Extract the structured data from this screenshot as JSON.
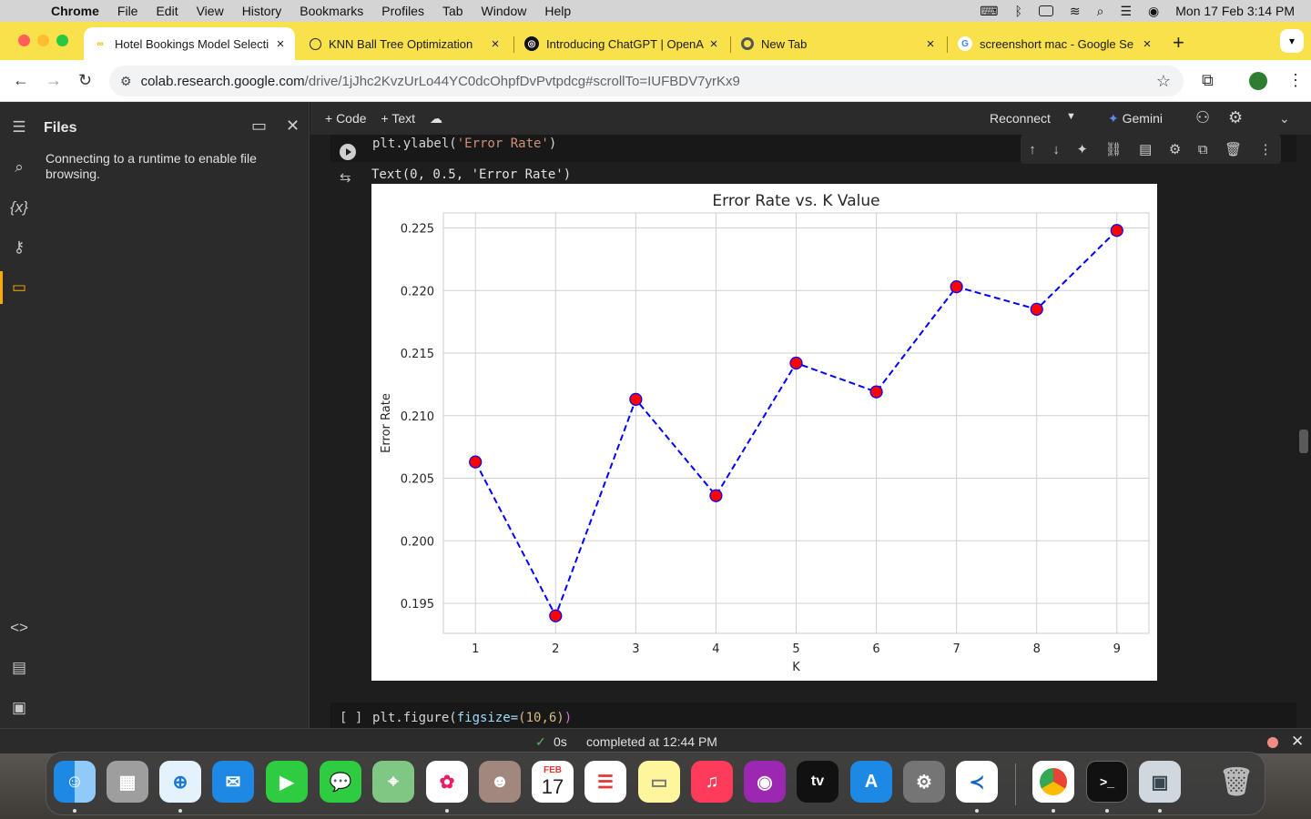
{
  "menubar": {
    "app": "Chrome",
    "items": [
      "File",
      "Edit",
      "View",
      "History",
      "Bookmarks",
      "Profiles",
      "Tab",
      "Window",
      "Help"
    ],
    "clock": "Mon 17 Feb  3:14 PM"
  },
  "tabs": [
    {
      "title": "Hotel Bookings Model Selecti",
      "favicon": "colab-icon",
      "active": true
    },
    {
      "title": "KNN Ball Tree Optimization",
      "favicon": "chatgpt-icon",
      "active": false
    },
    {
      "title": "Introducing ChatGPT | OpenA",
      "favicon": "openai-icon",
      "active": false
    },
    {
      "title": "New Tab",
      "favicon": "chrome-icon",
      "active": false
    },
    {
      "title": "screenshort mac - Google Se",
      "favicon": "google-icon",
      "active": false
    }
  ],
  "address": {
    "host": "colab.research.google.com",
    "path": "/drive/1jJhc2KvzUrLo44YC0dcOhpfDvPvtpdcg#scrollTo=IUFBDV7yrKx9"
  },
  "files_panel": {
    "title": "Files",
    "message": "Connecting to a runtime to enable file browsing."
  },
  "colab_toolbar": {
    "code": "+ Code",
    "text": "+ Text",
    "reconnect": "Reconnect",
    "gemini": "Gemini"
  },
  "cell_top": {
    "code_fn": "plt.ylabel(",
    "code_str": "'Error Rate'",
    "code_end": ")"
  },
  "output_text": "Text(0, 0.5, 'Error Rate')",
  "cell_next": {
    "brackets": "[ ]",
    "code_fn": "plt.figure(",
    "code_arg": "figsize=",
    "code_val": "(10,6)",
    "code_end": ")"
  },
  "status": {
    "duration": "0s",
    "message": "completed at 12:44 PM"
  },
  "dock": {
    "apps": [
      "finder-icon",
      "launchpad-icon",
      "safari-icon",
      "mail-icon",
      "facetime-icon",
      "messages-icon",
      "maps-icon",
      "photos-icon",
      "contacts-icon",
      "calendar-icon",
      "reminders-icon",
      "notes-icon",
      "music-icon",
      "podcasts-icon",
      "tv-icon",
      "appstore-icon",
      "settings-icon",
      "vscode-icon",
      "chrome-icon",
      "terminal-icon",
      "preview-icon",
      "trash-icon"
    ],
    "calendar_month": "FEB",
    "calendar_day": "17",
    "tv_label": "tv"
  },
  "chart_data": {
    "type": "line",
    "title": "Error Rate vs. K Value",
    "xlabel": "K",
    "ylabel": "Error Rate",
    "x": [
      1,
      2,
      3,
      4,
      5,
      6,
      7,
      8,
      9
    ],
    "series": [
      {
        "values": [
          0.2063,
          0.194,
          0.2113,
          0.2036,
          0.2142,
          0.2119,
          0.2203,
          0.2185,
          0.2248
        ],
        "line_color": "#0000ff",
        "marker_color": "#ff0000",
        "line_style": "dashed",
        "marker": "circle"
      }
    ],
    "xticks": [
      "1",
      "2",
      "3",
      "4",
      "5",
      "6",
      "7",
      "8",
      "9"
    ],
    "yticks": [
      "0.195",
      "0.200",
      "0.205",
      "0.210",
      "0.215",
      "0.220",
      "0.225"
    ],
    "ytick_values": [
      0.195,
      0.2,
      0.205,
      0.21,
      0.215,
      0.22,
      0.225
    ],
    "xlim": [
      0.6,
      9.4
    ],
    "ylim": [
      0.1926,
      0.2262
    ],
    "grid": true
  }
}
